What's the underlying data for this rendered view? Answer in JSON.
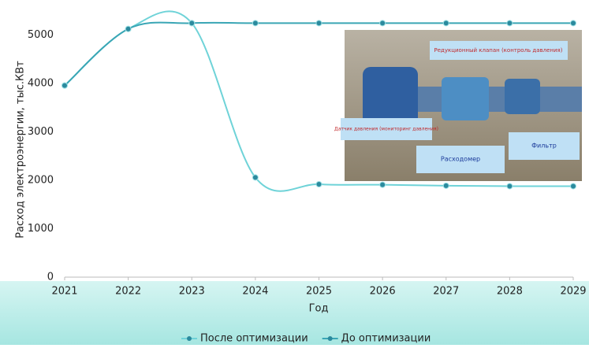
{
  "chart_data": {
    "type": "line",
    "y_label": "Расход электроэнергии, тыс.КВт",
    "x_label": "Год",
    "x": [
      2021,
      2022,
      2023,
      2024,
      2025,
      2026,
      2027,
      2028,
      2029
    ],
    "xlim": [
      2021,
      2029
    ],
    "xticks": [
      2021,
      2022,
      2023,
      2024,
      2025,
      2026,
      2027,
      2028,
      2029
    ],
    "ylim": [
      0,
      5500
    ],
    "yticks": [
      0,
      1000,
      2000,
      3000,
      4000,
      5000
    ],
    "series": [
      {
        "name": "После оптимизации",
        "color": "#6fd3d8",
        "values": [
          3960,
          5130,
          5250,
          2060,
          1920,
          1910,
          1890,
          1880,
          1880
        ]
      },
      {
        "name": "До оптимизации",
        "color": "#3aa6b5",
        "values": [
          3960,
          5130,
          5250,
          5250,
          5250,
          5250,
          5250,
          5250,
          5250
        ]
      }
    ],
    "marker_color": "#2b8a9e",
    "annotations": [
      "Редукционный клапан (контроль давления)",
      "Датчик давления (мониторинг давления)",
      "Расходомер",
      "Фильтр"
    ]
  }
}
